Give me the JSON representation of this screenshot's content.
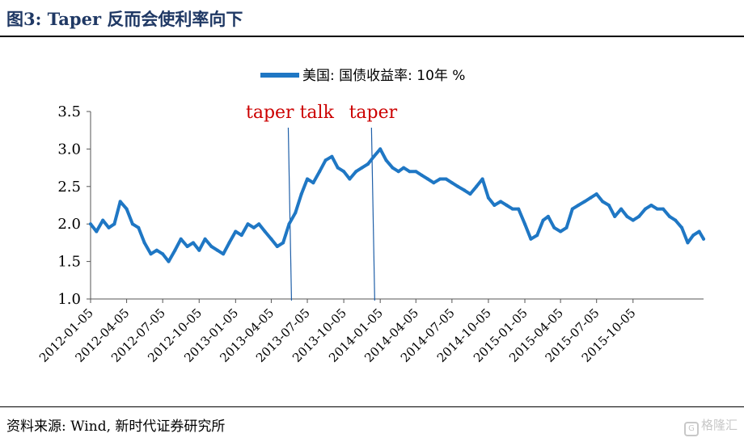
{
  "figure": {
    "title": "图3:   Taper 反而会使利率向下",
    "source": "资料来源:  Wind, 新时代证券研究所",
    "watermark": "格隆汇"
  },
  "chart_data": {
    "type": "line",
    "title": "",
    "xlabel": "",
    "ylabel": "",
    "ylim": [
      1.0,
      3.5
    ],
    "yticks": [
      "1.0",
      "1.5",
      "2.0",
      "2.5",
      "3.0",
      "3.5"
    ],
    "x_range": [
      "2012-01-05",
      "2016-03-31"
    ],
    "xticks": [
      "2012-01-05",
      "2012-04-05",
      "2012-07-05",
      "2012-10-05",
      "2013-01-05",
      "2013-04-05",
      "2013-07-05",
      "2013-10-05",
      "2014-01-05",
      "2014-04-05",
      "2014-07-05",
      "2014-10-05",
      "2015-01-05",
      "2015-04-05",
      "2015-07-05",
      "2015-10-05"
    ],
    "grid": false,
    "legend_position": "top-center",
    "line_color": "#1f77c4",
    "annotation_color": "#cc0000",
    "series": [
      {
        "name": "美国: 国债收益率: 10年  %",
        "x": [
          "2012-01-05",
          "2012-01-20",
          "2012-02-05",
          "2012-02-20",
          "2012-03-05",
          "2012-03-20",
          "2012-04-05",
          "2012-04-20",
          "2012-05-05",
          "2012-05-20",
          "2012-06-05",
          "2012-06-20",
          "2012-07-05",
          "2012-07-20",
          "2012-08-05",
          "2012-08-20",
          "2012-09-05",
          "2012-09-20",
          "2012-10-05",
          "2012-10-20",
          "2012-11-05",
          "2012-11-20",
          "2012-12-05",
          "2012-12-20",
          "2013-01-05",
          "2013-01-20",
          "2013-02-05",
          "2013-02-20",
          "2013-03-05",
          "2013-03-20",
          "2013-04-05",
          "2013-04-20",
          "2013-05-05",
          "2013-05-20",
          "2013-06-05",
          "2013-06-20",
          "2013-07-05",
          "2013-07-20",
          "2013-08-05",
          "2013-08-20",
          "2013-09-05",
          "2013-09-20",
          "2013-10-05",
          "2013-10-20",
          "2013-11-05",
          "2013-11-20",
          "2013-12-05",
          "2013-12-20",
          "2014-01-05",
          "2014-01-20",
          "2014-02-05",
          "2014-02-20",
          "2014-03-05",
          "2014-03-20",
          "2014-04-05",
          "2014-04-20",
          "2014-05-05",
          "2014-05-20",
          "2014-06-05",
          "2014-06-20",
          "2014-07-05",
          "2014-07-20",
          "2014-08-05",
          "2014-08-20",
          "2014-09-05",
          "2014-09-20",
          "2014-10-05",
          "2014-10-20",
          "2014-11-05",
          "2014-11-20",
          "2014-12-05",
          "2014-12-20",
          "2015-01-05",
          "2015-01-20",
          "2015-02-05",
          "2015-02-20",
          "2015-03-05",
          "2015-03-20",
          "2015-04-05",
          "2015-04-20",
          "2015-05-05",
          "2015-05-20",
          "2015-06-05",
          "2015-06-20",
          "2015-07-05",
          "2015-07-20",
          "2015-08-05",
          "2015-08-20",
          "2015-09-05",
          "2015-09-20",
          "2015-10-05",
          "2015-10-20",
          "2015-11-05",
          "2015-11-20",
          "2015-12-05",
          "2015-12-20",
          "2016-01-05",
          "2016-01-20",
          "2016-02-05",
          "2016-02-20",
          "2016-03-05",
          "2016-03-20",
          "2016-03-31"
        ],
        "values": [
          2.0,
          1.9,
          2.05,
          1.95,
          2.0,
          2.3,
          2.2,
          2.0,
          1.95,
          1.75,
          1.6,
          1.65,
          1.6,
          1.5,
          1.65,
          1.8,
          1.7,
          1.75,
          1.65,
          1.8,
          1.7,
          1.65,
          1.6,
          1.75,
          1.9,
          1.85,
          2.0,
          1.95,
          2.0,
          1.9,
          1.8,
          1.7,
          1.75,
          2.0,
          2.15,
          2.4,
          2.6,
          2.55,
          2.7,
          2.85,
          2.9,
          2.75,
          2.7,
          2.6,
          2.7,
          2.75,
          2.8,
          2.9,
          3.0,
          2.85,
          2.75,
          2.7,
          2.75,
          2.7,
          2.7,
          2.65,
          2.6,
          2.55,
          2.6,
          2.6,
          2.55,
          2.5,
          2.45,
          2.4,
          2.5,
          2.6,
          2.35,
          2.25,
          2.3,
          2.25,
          2.2,
          2.2,
          2.0,
          1.8,
          1.85,
          2.05,
          2.1,
          1.95,
          1.9,
          1.95,
          2.2,
          2.25,
          2.3,
          2.35,
          2.4,
          2.3,
          2.25,
          2.1,
          2.2,
          2.1,
          2.05,
          2.1,
          2.2,
          2.25,
          2.2,
          2.2,
          2.1,
          2.05,
          1.95,
          1.75,
          1.85,
          1.9,
          1.8
        ]
      }
    ],
    "annotations": [
      {
        "label": "taper talk",
        "x": "2013-05-22"
      },
      {
        "label": "taper",
        "x": "2013-12-18"
      }
    ]
  }
}
